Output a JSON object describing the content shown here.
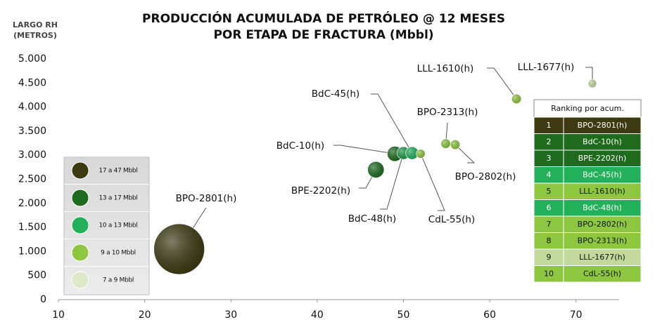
{
  "chart_data": {
    "type": "scatter",
    "title": [
      "PRODUCCIÓN ACUMULADA DE PETRÓLEO @ 12 MESES",
      "POR ETAPA DE FRACTURA (Mbbl)"
    ],
    "y_label": [
      "LARGO RH",
      "(METROS)"
    ],
    "xlim": [
      10,
      75
    ],
    "xticks": [
      10,
      20,
      30,
      40,
      50,
      60,
      70
    ],
    "ylim": [
      0,
      5000
    ],
    "yticks": [
      0,
      500,
      {
        "value": 1000,
        "label": "1.000"
      },
      {
        "value": 1500,
        "label": "1.500"
      },
      {
        "value": 2000,
        "label": "2.000"
      },
      {
        "value": 2500,
        "label": "2.500"
      },
      {
        "value": 3000,
        "label": "3.000"
      },
      {
        "value": 3500,
        "label": "3.500"
      },
      {
        "value": 4000,
        "label": "4.000"
      },
      {
        "value": 4500,
        "label": "4.500"
      },
      {
        "value": 5000,
        "label": "5.000"
      }
    ],
    "series": [
      {
        "labels": [
          "BPO-2801(h)",
          "BPE-2202(h)",
          "BdC-10(h)",
          "BdC-48(h)",
          "BdC-45(h)",
          "CdL-55(h)",
          "BPO-2313(h)",
          "BPO-2802(h)",
          "LLL-1610(h)",
          "LLL-1677(h)"
        ],
        "x": [
          24.0,
          46.8,
          49.0,
          50.0,
          51.0,
          52.0,
          54.9,
          56.0,
          63.1,
          71.9
        ],
        "values": [
          1050,
          2700,
          3030,
          3045,
          3045,
          3030,
          3240,
          3220,
          4170,
          4490
        ],
        "sizes": [
          40,
          13,
          12,
          10,
          10,
          7,
          7.5,
          7.5,
          7.5,
          6.5
        ],
        "colors": [
          "#3d3a12",
          "#1e6b1e",
          "#1e6b1e",
          "#1f9a48",
          "#22b05a",
          "#8dc63f",
          "#8dc63f",
          "#8dc63f",
          "#8dc63f",
          "#c2d99c"
        ]
      }
    ]
  },
  "legend": [
    {
      "label": "17 a 47 Mbbl",
      "color": "#3d3a12"
    },
    {
      "label": "13 a 17 Mbbl",
      "color": "#1e6b1e"
    },
    {
      "label": "10 a 13 Mbbl",
      "color": "#22b05a"
    },
    {
      "label": "9 a 10 Mbbl",
      "color": "#8dc63f"
    },
    {
      "label": "7 a 9 Mbbl",
      "color": "#dde9c8"
    }
  ],
  "ranking": {
    "title": "Ranking por acum.",
    "rows": [
      {
        "rank": 1,
        "name": "BPO-2801(h)",
        "color": "#3d3a12"
      },
      {
        "rank": 2,
        "name": "BdC-10(h)",
        "color": "#1e6b1e"
      },
      {
        "rank": 3,
        "name": "BPE-2202(h)",
        "color": "#1e6b1e"
      },
      {
        "rank": 4,
        "name": "BdC-45(h)",
        "color": "#22b05a"
      },
      {
        "rank": 5,
        "name": "LLL-1610(h)",
        "color": "#8dc63f"
      },
      {
        "rank": 6,
        "name": "BdC-48(h)",
        "color": "#22b05a"
      },
      {
        "rank": 7,
        "name": "BPO-2802(h)",
        "color": "#8dc63f"
      },
      {
        "rank": 8,
        "name": "BPO-2313(h)",
        "color": "#8dc63f"
      },
      {
        "rank": 9,
        "name": "LLL-1677(h)",
        "color": "#c2d99c"
      },
      {
        "rank": 10,
        "name": "CdL-55(h)",
        "color": "#8dc63f"
      }
    ]
  }
}
